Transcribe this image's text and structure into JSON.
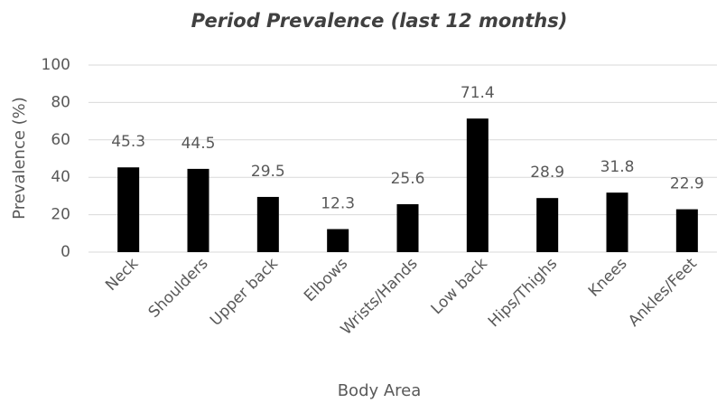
{
  "chart_data": {
    "type": "bar",
    "title": "Period Prevalence (last 12 months)",
    "x_label": "Body Area",
    "y_label": "Prevalence (%)",
    "categories": [
      "Neck",
      "Shoulders",
      "Upper back",
      "Elbows",
      "Wrists/Hands",
      "Low back",
      "Hips/Thighs",
      "Knees",
      "Ankles/Feet"
    ],
    "values": [
      45.3,
      44.5,
      29.5,
      12.3,
      25.6,
      71.4,
      28.9,
      31.8,
      22.9
    ],
    "color": "#000000",
    "ylim": [
      0,
      100
    ],
    "yticks": [
      0,
      20,
      40,
      60,
      80,
      100
    ],
    "grid": true
  }
}
